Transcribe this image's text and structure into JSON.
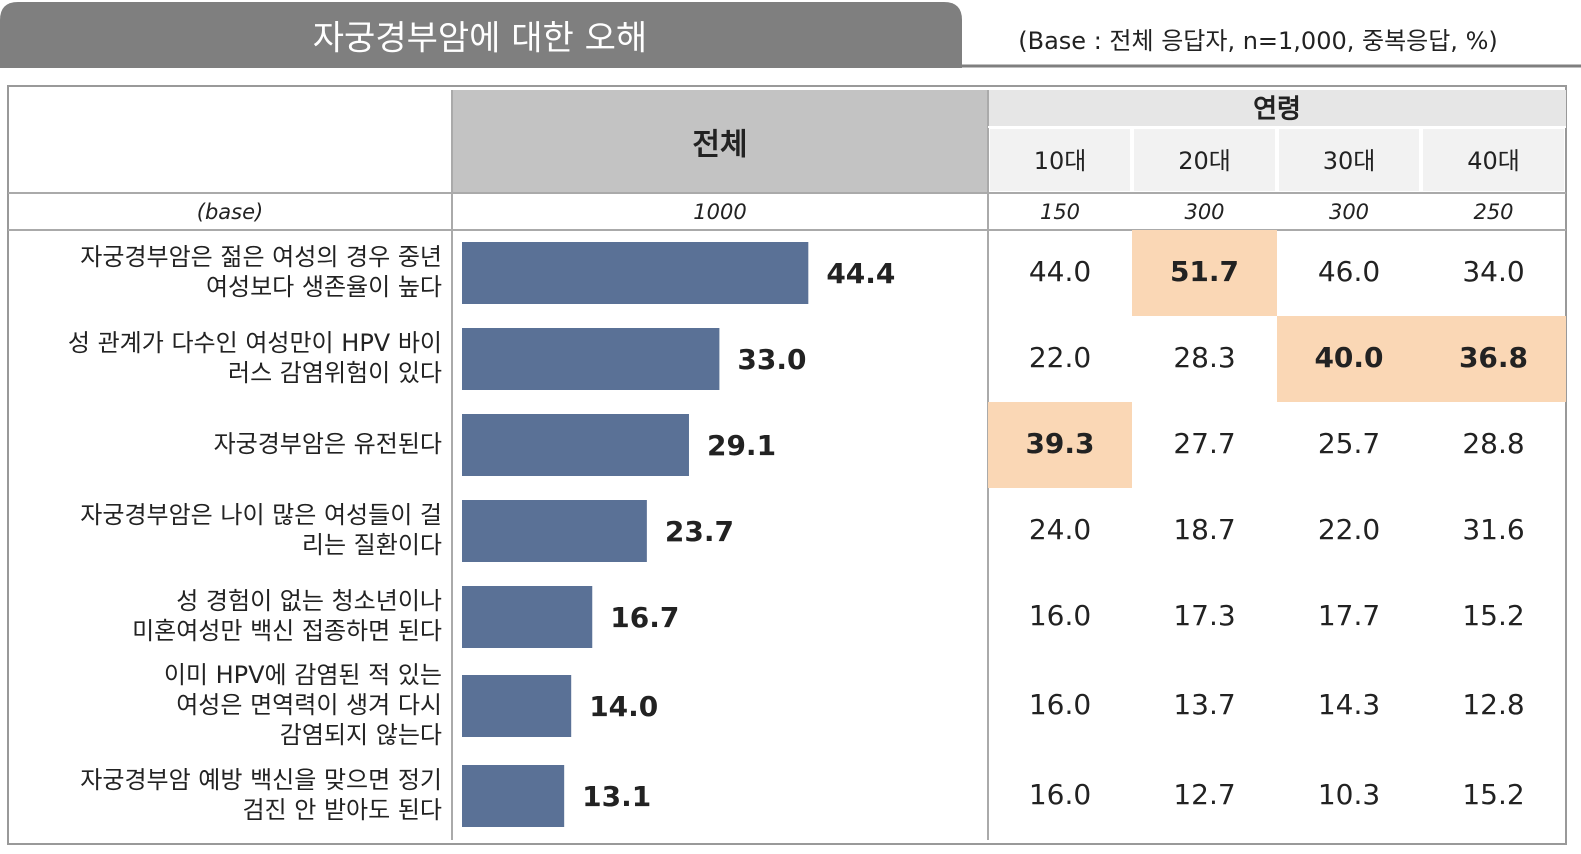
{
  "header": {
    "title": "자궁경부암에 대한 오해",
    "note": "(Base : 전체 응답자, n=1,000, 중복응답, %)"
  },
  "table": {
    "total_header": "전체",
    "group_header": "연령",
    "age_headers": [
      "10대",
      "20대",
      "30대",
      "40대"
    ],
    "base_label": "(base)",
    "base_total": "1000",
    "base_ages": [
      "150",
      "300",
      "300",
      "250"
    ],
    "bar_color": "#5a7196",
    "highlight_color": "#fad7b5",
    "rows": [
      {
        "label": [
          "자궁경부암은 젊은 여성의 경우 중년",
          "여성보다 생존율이 높다"
        ],
        "total": "44.4",
        "ages": [
          "44.0",
          "51.7",
          "46.0",
          "34.0"
        ],
        "highlight": [
          false,
          true,
          false,
          false
        ]
      },
      {
        "label": [
          "성 관계가 다수인 여성만이 HPV 바이",
          "러스 감염위험이 있다"
        ],
        "total": "33.0",
        "ages": [
          "22.0",
          "28.3",
          "40.0",
          "36.8"
        ],
        "highlight": [
          false,
          false,
          true,
          true
        ]
      },
      {
        "label": [
          "자궁경부암은 유전된다"
        ],
        "total": "29.1",
        "ages": [
          "39.3",
          "27.7",
          "25.7",
          "28.8"
        ],
        "highlight": [
          true,
          false,
          false,
          false
        ]
      },
      {
        "label": [
          "자궁경부암은 나이 많은 여성들이 걸",
          "리는 질환이다"
        ],
        "total": "23.7",
        "ages": [
          "24.0",
          "18.7",
          "22.0",
          "31.6"
        ],
        "highlight": [
          false,
          false,
          false,
          false
        ]
      },
      {
        "label": [
          "성 경험이 없는 청소년이나",
          "미혼여성만 백신 접종하면 된다"
        ],
        "total": "16.7",
        "ages": [
          "16.0",
          "17.3",
          "17.7",
          "15.2"
        ],
        "highlight": [
          false,
          false,
          false,
          false
        ]
      },
      {
        "label": [
          "이미 HPV에 감염된 적 있는",
          "여성은 면역력이 생겨 다시",
          "감염되지 않는다"
        ],
        "total": "14.0",
        "ages": [
          "16.0",
          "13.7",
          "14.3",
          "12.8"
        ],
        "highlight": [
          false,
          false,
          false,
          false
        ]
      },
      {
        "label": [
          "자궁경부암 예방 백신을 맞으면 정기",
          "검진 안 받아도 된다"
        ],
        "total": "13.1",
        "ages": [
          "16.0",
          "12.7",
          "10.3",
          "15.2"
        ],
        "highlight": [
          false,
          false,
          false,
          false
        ]
      }
    ]
  }
}
